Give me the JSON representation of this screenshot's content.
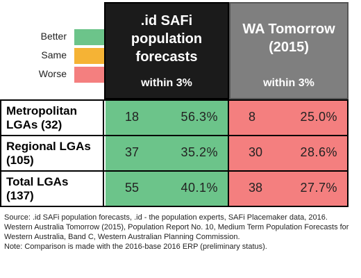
{
  "legend": [
    {
      "label": "Better",
      "color": "#6cc48a"
    },
    {
      "label": "Same",
      "color": "#f5b335"
    },
    {
      "label": "Worse",
      "color": "#f47f7f"
    }
  ],
  "headers": {
    "id": {
      "title_lines": [
        ".id SAFi",
        "population",
        "forecasts"
      ],
      "sub": "within 3%"
    },
    "wa": {
      "title_lines": [
        "WA Tomorrow",
        "(2015)"
      ],
      "sub": "within 3%"
    }
  },
  "chart_data": {
    "type": "table",
    "columns": [
      ".id SAFi population forecasts",
      "WA Tomorrow (2015)"
    ],
    "column_subheader": "within 3%",
    "rows": [
      {
        "label": "Metropolitan LGAs (32)",
        "id_count": "18",
        "id_pct": "56.3%",
        "wa_count": "8",
        "wa_pct": "25.0%",
        "id_rating": "Better",
        "wa_rating": "Worse"
      },
      {
        "label": "Regional LGAs (105)",
        "id_count": "37",
        "id_pct": "35.2%",
        "wa_count": "30",
        "wa_pct": "28.6%",
        "id_rating": "Better",
        "wa_rating": "Worse"
      },
      {
        "label": "Total LGAs (137)",
        "id_count": "55",
        "id_pct": "40.1%",
        "wa_count": "38",
        "wa_pct": "27.7%",
        "id_rating": "Better",
        "wa_rating": "Worse"
      }
    ]
  },
  "row_label_lines": [
    [
      "Metropolitan",
      "LGAs (32)"
    ],
    [
      "Regional LGAs",
      "(105)"
    ],
    [
      "Total LGAs",
      "(137)"
    ]
  ],
  "notes": {
    "source": "Source: .id SAFi population forecasts, .id - the population experts, SAFi Placemaker data, 2016.  Western Australia Tomorrow (2015), Population Report No. 10, Medium Term Population Forecasts for Western Australia, Band C, Western Australian Planning Commission.",
    "note": "Note: Comparison is made with the 2016-base 2016 ERP (preliminary status)."
  }
}
